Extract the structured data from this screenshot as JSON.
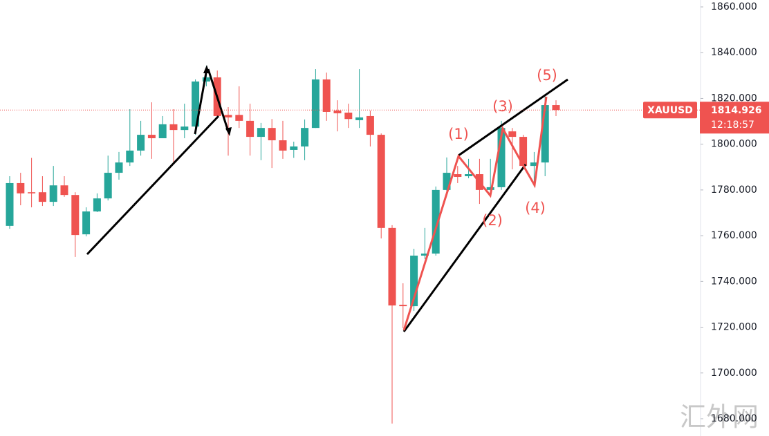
{
  "chart_data": {
    "type": "candlestick",
    "symbol": "XAUUSD",
    "current_price": 1814.926,
    "current_price_label": "1814.926",
    "countdown": "12:18:57",
    "up_color": "#26a69a",
    "down_color": "#ef5350",
    "ylim": [
      1672.45,
      1863.02
    ],
    "yticks": [
      {
        "value": 1680,
        "label": "1680.000"
      },
      {
        "value": 1700,
        "label": "1700.000"
      },
      {
        "value": 1720,
        "label": "1720.000"
      },
      {
        "value": 1740,
        "label": "1740.000"
      },
      {
        "value": 1760,
        "label": "1760.000"
      },
      {
        "value": 1780,
        "label": "1780.000"
      },
      {
        "value": 1800,
        "label": "1800.000"
      },
      {
        "value": 1820,
        "label": "1820.000"
      },
      {
        "value": 1840,
        "label": "1840.000"
      },
      {
        "value": 1860,
        "label": "1860.000"
      }
    ],
    "open": [
      1764.3,
      1783,
      1779,
      1779,
      1774.8,
      1782,
      1777.8,
      1760.6,
      1770.6,
      1776.3,
      1787.5,
      1792,
      1797.2,
      1804.1,
      1802.6,
      1808.7,
      1806.2,
      1807.7,
      1827.4,
      1829.2,
      1812.8,
      1812.8,
      1810.2,
      1803.2,
      1807.1,
      1801.7,
      1797.5,
      1799,
      1807.1,
      1828.3,
      1814.7,
      1813.8,
      1810.5,
      1812.3,
      1804.1,
      1763.4,
      1729.8,
      1729.2,
      1751.3,
      1752.2,
      1780,
      1786.9,
      1786,
      1786.9,
      1780,
      1781.2,
      1805.6,
      1803.2,
      1790.5,
      1792,
      1817.1
    ],
    "high": [
      1786,
      1787.5,
      1794,
      1786,
      1790.5,
      1786,
      1779,
      1772.4,
      1778.5,
      1795,
      1796.6,
      1815.3,
      1810.2,
      1818.3,
      1812.3,
      1815.3,
      1817.7,
      1828.3,
      1834.3,
      1832.2,
      1816.2,
      1825.3,
      1817.7,
      1809.3,
      1811,
      1810.2,
      1801.1,
      1810.8,
      1832.8,
      1831.3,
      1819.2,
      1817.7,
      1832.8,
      1814.7,
      1804.7,
      1764.6,
      1739.2,
      1754.3,
      1763.4,
      1781.5,
      1794.2,
      1790.5,
      1793.6,
      1793.6,
      1793.6,
      1810.2,
      1807.1,
      1804.1,
      1796.6,
      1820.7,
      1819.2
    ],
    "low": [
      1763,
      1773.3,
      1772.4,
      1773,
      1773,
      1777,
      1750.7,
      1759.7,
      1770.3,
      1775.4,
      1784.5,
      1790.5,
      1795,
      1793.6,
      1803.2,
      1792,
      1802.6,
      1804.1,
      1825.3,
      1811.7,
      1795,
      1807.1,
      1795,
      1793,
      1789.6,
      1793.6,
      1794,
      1793,
      1807.1,
      1810.2,
      1805.6,
      1807.1,
      1807.1,
      1799,
      1758.8,
      1677.9,
      1719.6,
      1727.1,
      1749.8,
      1751.3,
      1778.5,
      1783,
      1785.1,
      1773.9,
      1778.5,
      1780,
      1789,
      1789,
      1781.5,
      1786,
      1812.3
    ],
    "close": [
      1783,
      1778.5,
      1778.5,
      1774.8,
      1782,
      1777.8,
      1760.3,
      1770.6,
      1776.3,
      1787.5,
      1792,
      1797.2,
      1804.1,
      1802.6,
      1808.7,
      1806.2,
      1807.7,
      1827.4,
      1829.2,
      1812.3,
      1811.7,
      1810.2,
      1803.2,
      1807.1,
      1801.7,
      1797.2,
      1799,
      1807.1,
      1828.3,
      1814.1,
      1813.5,
      1811,
      1811.7,
      1804.1,
      1763.4,
      1729.5,
      1729.2,
      1751.3,
      1752.2,
      1780,
      1787.5,
      1785.7,
      1786.9,
      1780,
      1781.2,
      1807.1,
      1803.2,
      1790.5,
      1792,
      1817.1,
      1814.926
    ],
    "annotations": [
      "(1)",
      "(2)",
      "(3)",
      "(4)",
      "(5)"
    ],
    "watermark": "汇外网"
  }
}
